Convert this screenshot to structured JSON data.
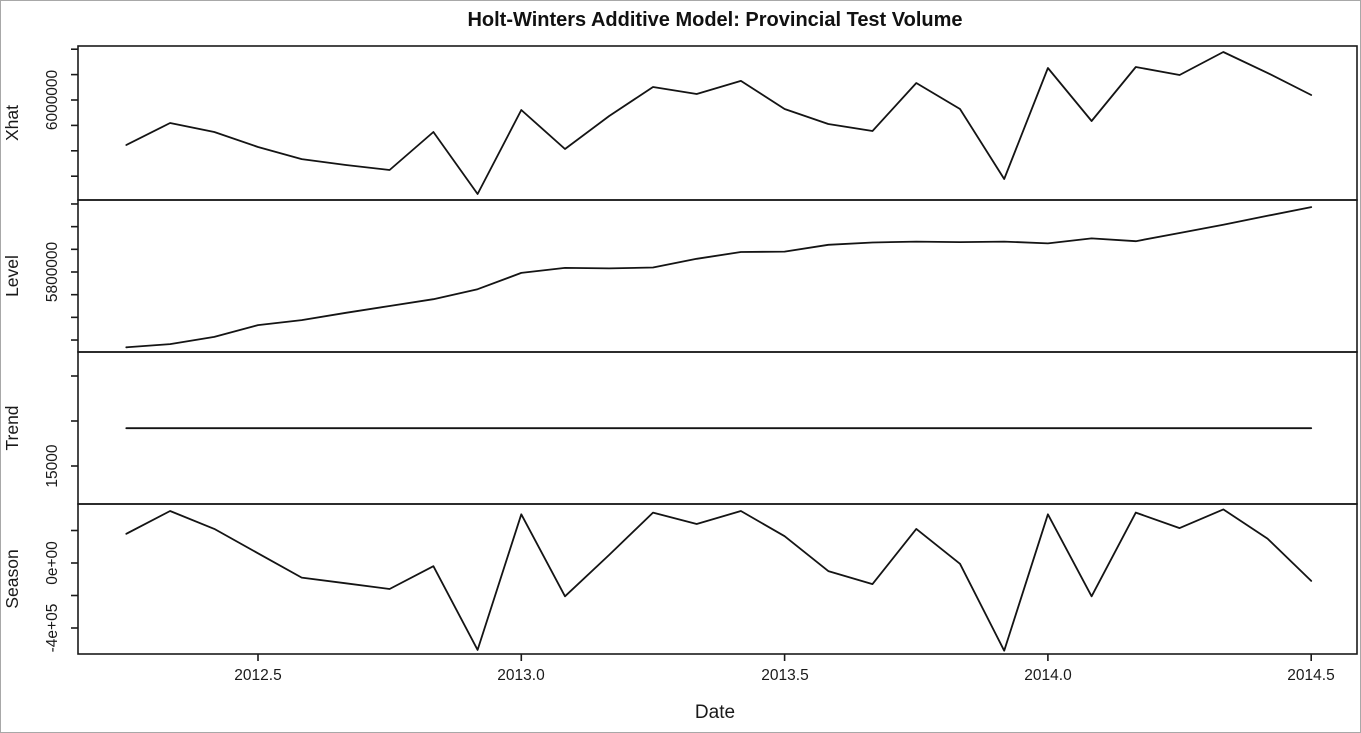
{
  "title": "Holt-Winters Additive Model: Provincial Test Volume",
  "x_axis": {
    "label": "Date",
    "ticks": [
      "2012.5",
      "2013.0",
      "2013.5",
      "2014.0",
      "2014.5"
    ],
    "tick_values": [
      2012.5,
      2013.0,
      2013.5,
      2014.0,
      2014.5
    ]
  },
  "chart_data": {
    "type": "line",
    "title": "Holt-Winters Additive Model: Provincial Test Volume",
    "xlabel": "Date",
    "x_range": [
      2012.16,
      2014.59
    ],
    "grid": false,
    "legend": "none",
    "x": [
      2012.25,
      2012.333,
      2012.417,
      2012.5,
      2012.583,
      2012.667,
      2012.75,
      2012.833,
      2012.917,
      2013.0,
      2013.083,
      2013.167,
      2013.25,
      2013.333,
      2013.417,
      2013.5,
      2013.583,
      2013.667,
      2013.75,
      2013.833,
      2013.917,
      2014.0,
      2014.083,
      2014.167,
      2014.25,
      2014.333,
      2014.417,
      2014.5
    ],
    "panels": [
      {
        "name": "Xhat",
        "ylabel": "Xhat",
        "y_range": [
          5212000,
          6425000
        ],
        "tick_values": [
          6400000,
          6200000,
          6000000,
          5800000,
          5600000,
          5400000
        ],
        "labeled_ticks": [
          {
            "value": 6000000,
            "label": "6000000"
          }
        ],
        "values": [
          5646000,
          5819000,
          5748000,
          5630000,
          5535000,
          5488000,
          5449000,
          5748000,
          5260000,
          5921000,
          5614000,
          5874000,
          6102000,
          6047000,
          6150000,
          5929000,
          5811000,
          5756000,
          6134000,
          5929000,
          5378000,
          6252000,
          5835000,
          6260000,
          6197000,
          6378000,
          6213000,
          6039000
        ]
      },
      {
        "name": "Level",
        "ylabel": "Level",
        "y_range": [
          5624000,
          5959000
        ],
        "tick_values": [
          5950000,
          5900000,
          5850000,
          5800000,
          5750000,
          5700000,
          5650000
        ],
        "labeled_ticks": [
          {
            "value": 5800000,
            "label": "5800000"
          }
        ],
        "values": [
          5634000,
          5641000,
          5657000,
          5683000,
          5694000,
          5710000,
          5725000,
          5740000,
          5762000,
          5798000,
          5809000,
          5808000,
          5810000,
          5829000,
          5844000,
          5845000,
          5860000,
          5865000,
          5867000,
          5866000,
          5867000,
          5863000,
          5874000,
          5868000,
          5886000,
          5904000,
          5924000,
          5943000
        ]
      },
      {
        "name": "Trend",
        "ylabel": "Trend",
        "y_range": [
          10800,
          27700
        ],
        "tick_values": [
          25000,
          20000,
          15000
        ],
        "labeled_ticks": [
          {
            "value": 15000,
            "label": "15000"
          }
        ],
        "values": [
          19200,
          19200,
          19200,
          19200,
          19200,
          19200,
          19200,
          19200,
          19200,
          19200,
          19200,
          19200,
          19200,
          19200,
          19200,
          19200,
          19200,
          19200,
          19200,
          19200,
          19200,
          19200,
          19200,
          19200,
          19200,
          19200,
          19200,
          19200
        ]
      },
      {
        "name": "Season",
        "ylabel": "Season",
        "y_range": [
          -560000,
          363000
        ],
        "tick_values": [
          200000,
          0,
          -200000,
          -400000
        ],
        "labeled_ticks": [
          {
            "value": 0,
            "label": "0e+00"
          },
          {
            "value": -400000,
            "label": "-4e+05"
          }
        ],
        "values": [
          180000,
          320000,
          210000,
          60000,
          -90000,
          -125000,
          -160000,
          -20000,
          -535000,
          300000,
          -205000,
          50000,
          310000,
          240000,
          320000,
          165000,
          -50000,
          -130000,
          210000,
          -5000,
          -540000,
          300000,
          -205000,
          310000,
          215000,
          330000,
          150000,
          -110000
        ]
      }
    ],
    "colors": {
      "line": "#141414",
      "background": "#ffffff",
      "frame": "#1a1a1a"
    }
  }
}
